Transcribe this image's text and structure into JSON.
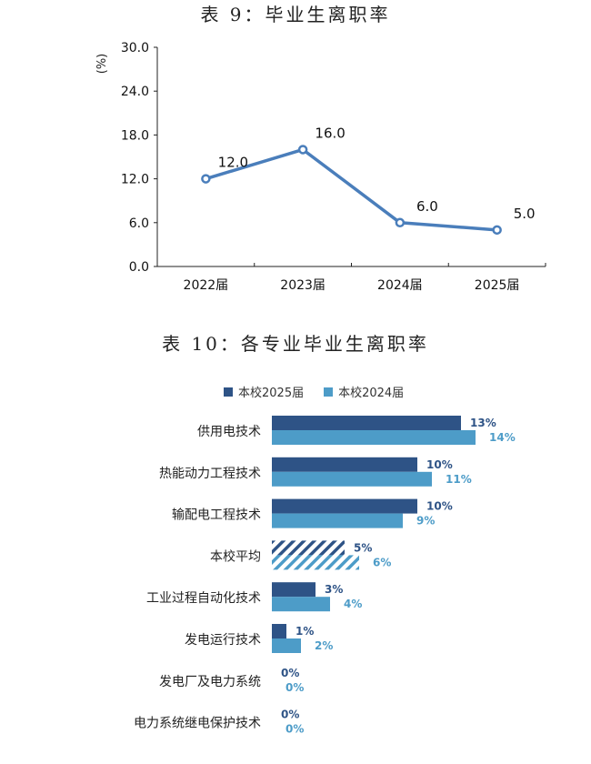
{
  "chart_data": [
    {
      "type": "line",
      "title": "表 9：毕业生离职率",
      "xlabel": "",
      "ylabel": "(%)",
      "categories": [
        "2022届",
        "2023届",
        "2024届",
        "2025届"
      ],
      "series": [
        {
          "name": "毕业生离职率",
          "values": [
            12.0,
            16.0,
            6.0,
            5.0
          ],
          "color": "#4a7ebb"
        }
      ],
      "data_labels": [
        "12.0",
        "16.0",
        "6.0",
        "5.0"
      ],
      "yticks": [
        "0.0",
        "6.0",
        "12.0",
        "18.0",
        "24.0",
        "30.0"
      ],
      "ylim": [
        0,
        30
      ],
      "grid": false,
      "legend": "none"
    },
    {
      "type": "bar",
      "orientation": "horizontal",
      "title": "表 10：各专业毕业生离职率",
      "legend_position": "top",
      "categories": [
        "供用电技术",
        "热能动力工程技术",
        "输配电工程技术",
        "本校平均",
        "工业过程自动化技术",
        "发电运行技术",
        "发电厂及电力系统",
        "电力系统继电保护技术"
      ],
      "series": [
        {
          "name": "本校2025届",
          "values": [
            13,
            10,
            10,
            5,
            3,
            1,
            0,
            0
          ],
          "labels": [
            "13%",
            "10%",
            "10%",
            "5%",
            "3%",
            "1%",
            "0%",
            "0%"
          ],
          "color": "#2e5386"
        },
        {
          "name": "本校2024届",
          "values": [
            14,
            11,
            9,
            6,
            4,
            2,
            0,
            0
          ],
          "labels": [
            "14%",
            "11%",
            "9%",
            "6%",
            "4%",
            "2%",
            "0%",
            "0%"
          ],
          "color": "#4d9cc8"
        }
      ],
      "highlight_category": "本校平均",
      "highlight_style": "hatched",
      "unit": "%"
    }
  ]
}
